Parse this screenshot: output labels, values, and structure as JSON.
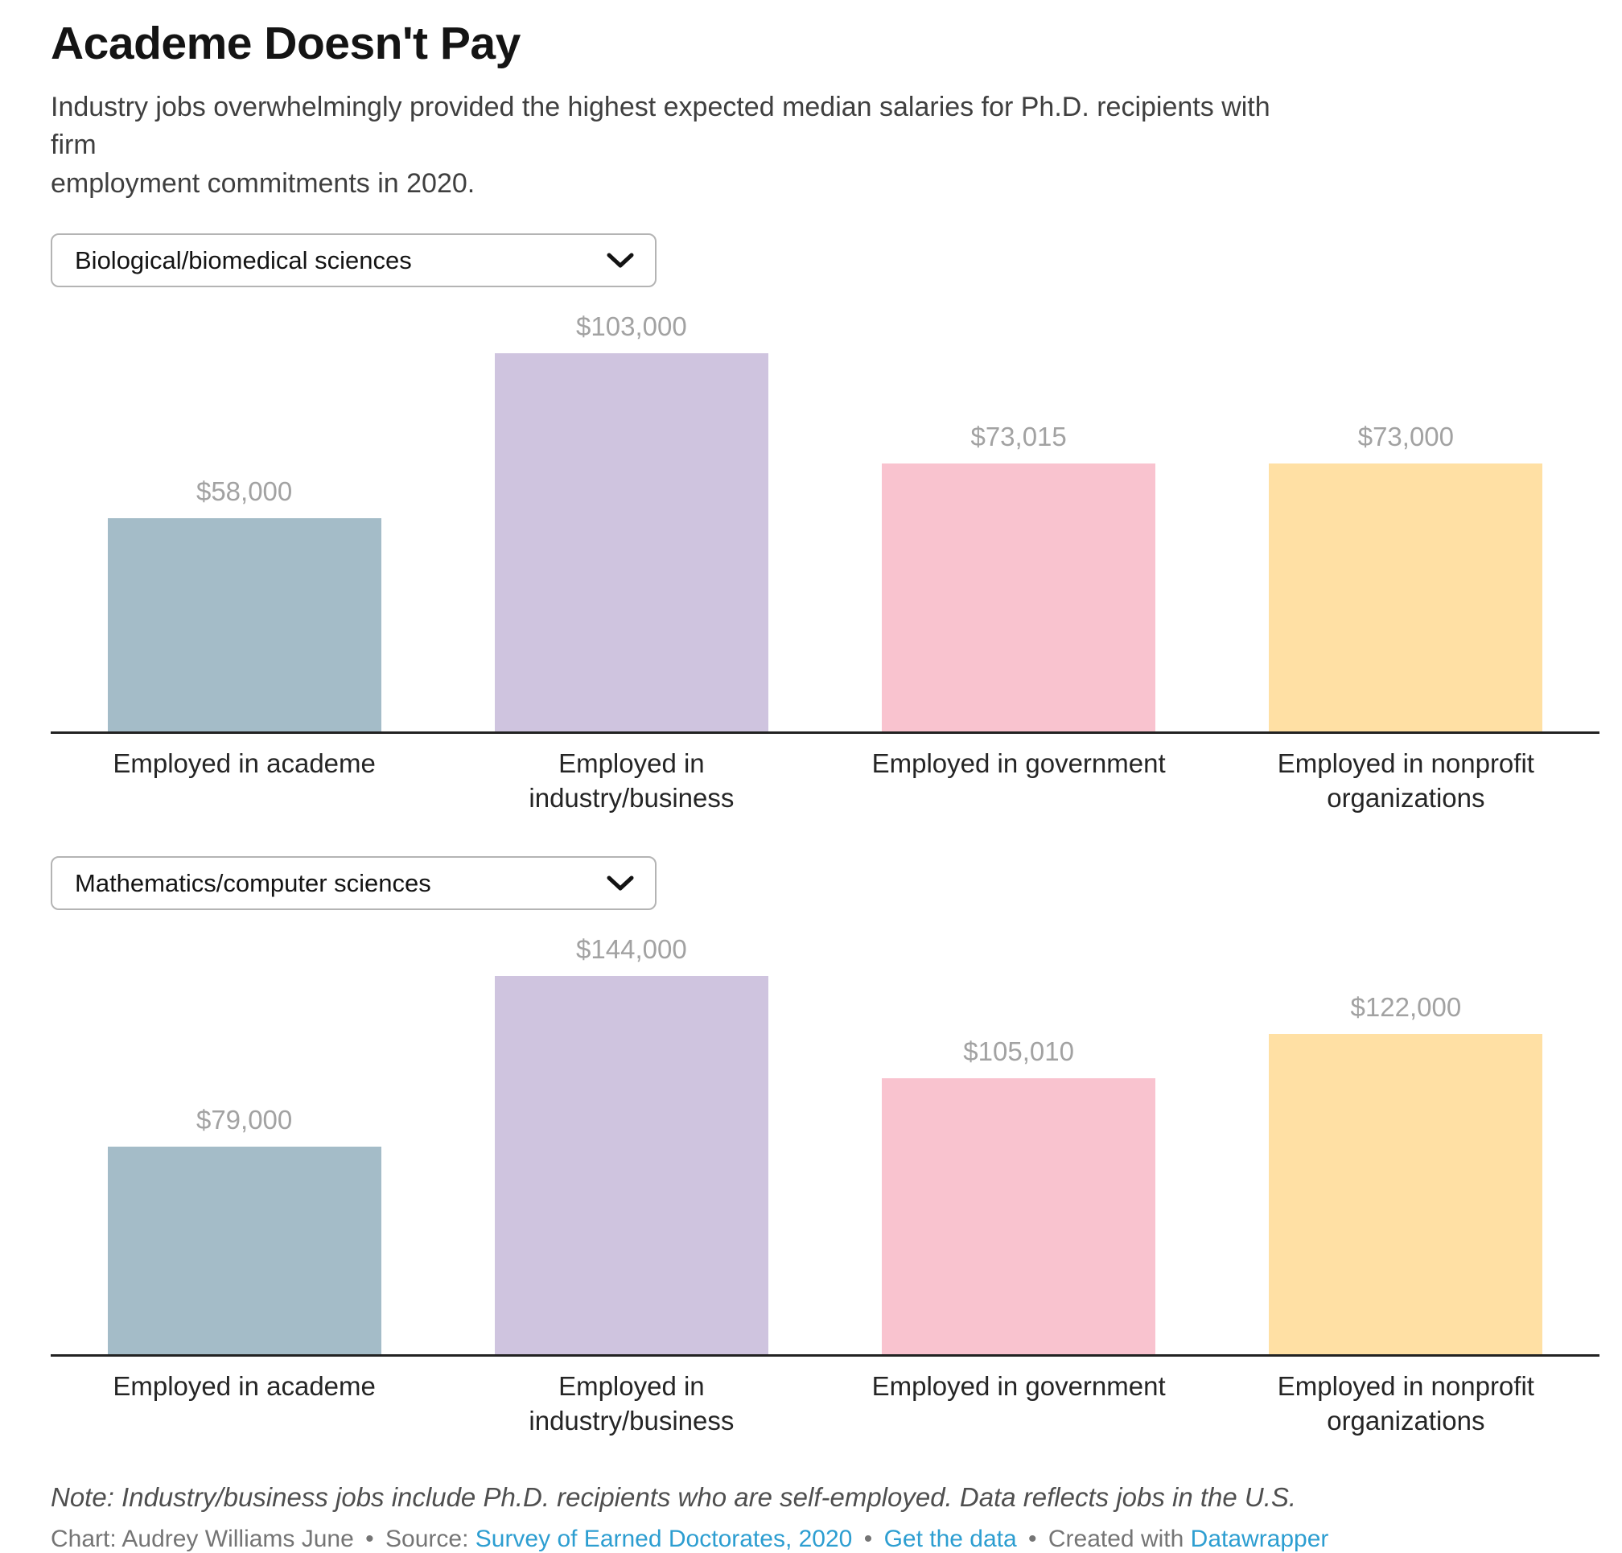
{
  "page": {
    "title": "Academe Doesn't Pay",
    "subtitle_line1": "Industry jobs overwhelmingly provided the highest expected median salaries for Ph.D. recipients with firm",
    "subtitle_line2": "employment commitments in 2020.",
    "note": "Note: Industry/business jobs include Ph.D. recipients who are self-employed. Data reflects jobs in the U.S.",
    "credits": {
      "chart_by": "Chart: Audrey Williams June",
      "separator": "•",
      "source_label": "Source:",
      "source_link": "Survey of Earned Doctorates, 2020",
      "get_data_link": "Get the data",
      "created_with": "Created with",
      "tool_link": "Datawrapper"
    },
    "colors": {
      "link_blue": "#2d9ed1",
      "axis": "#222222",
      "value_label_gray": "#a2a2a2"
    }
  },
  "chart_data": [
    {
      "type": "bar",
      "group": "Biological/biomedical sciences",
      "categories": [
        "Employed in academe",
        "Employed in\nindustry/business",
        "Employed in government",
        "Employed in nonprofit\norganizations"
      ],
      "values": [
        58000,
        103000,
        73015,
        73000
      ],
      "value_labels": [
        "$58,000",
        "$103,000",
        "$73,015",
        "$73,000"
      ],
      "bar_colors": [
        "#a4bcc8",
        "#cfc4df",
        "#f9c3cf",
        "#ffe0a4"
      ],
      "xlabel": "",
      "ylabel": "",
      "ylim": [
        0,
        103000
      ],
      "grid": false,
      "legend": "none"
    },
    {
      "type": "bar",
      "group": "Mathematics/computer sciences",
      "categories": [
        "Employed in academe",
        "Employed in\nindustry/business",
        "Employed in government",
        "Employed in nonprofit\norganizations"
      ],
      "values": [
        79000,
        144000,
        105010,
        122000
      ],
      "value_labels": [
        "$79,000",
        "$144,000",
        "$105,010",
        "$122,000"
      ],
      "bar_colors": [
        "#a4bcc8",
        "#cfc4df",
        "#f9c3cf",
        "#ffe0a4"
      ],
      "xlabel": "",
      "ylabel": "",
      "ylim": [
        0,
        144000
      ],
      "grid": false,
      "legend": "none"
    }
  ]
}
